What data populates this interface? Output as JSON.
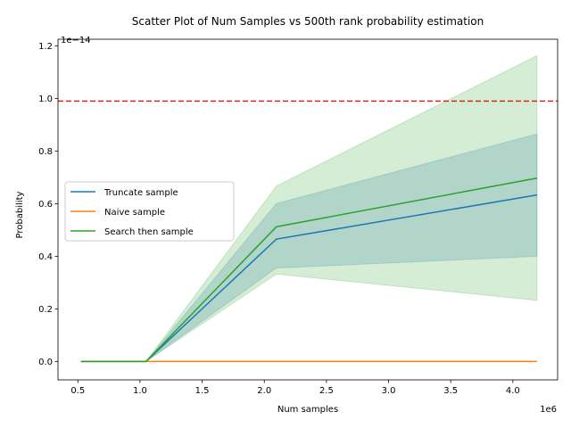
{
  "chart_data": {
    "type": "line",
    "title": "Scatter Plot of Num Samples vs 500th rank probability estimation",
    "xlabel": "Num samples",
    "ylabel": "Probability",
    "x_multiplier_label": "1e6",
    "y_multiplier_label": "1e−14",
    "x_scale": 1000000.0,
    "y_scale": 1e-14,
    "xlim": [
      0.34,
      4.36
    ],
    "ylim": [
      -0.07,
      1.225
    ],
    "x_ticks": [
      0.5,
      1.0,
      1.5,
      2.0,
      2.5,
      3.0,
      3.5,
      4.0
    ],
    "x_tick_labels": [
      "0.5",
      "1.0",
      "1.5",
      "2.0",
      "2.5",
      "3.0",
      "3.5",
      "4.0"
    ],
    "y_ticks": [
      0.0,
      0.2,
      0.4,
      0.6,
      0.8,
      1.0,
      1.2
    ],
    "y_tick_labels": [
      "0.0",
      "0.2",
      "0.4",
      "0.6",
      "0.8",
      "1.0",
      "1.2"
    ],
    "x": [
      0.524288,
      1.048576,
      2.097152,
      4.194304
    ],
    "grid": false,
    "legend_position": "center-left",
    "series": [
      {
        "name": "Truncate sample",
        "color": "#1f77b4",
        "values": [
          0.0,
          0.0,
          0.465,
          0.633
        ],
        "band_low": [
          0.0,
          0.0,
          0.355,
          0.4
        ],
        "band_high": [
          0.0,
          0.0,
          0.6,
          0.865
        ]
      },
      {
        "name": "Naive sample",
        "color": "#ff7f0e",
        "values": [
          0.0,
          0.0,
          0.0,
          0.0
        ],
        "band_low": [
          0.0,
          0.0,
          0.0,
          0.0
        ],
        "band_high": [
          0.0,
          0.0,
          0.0,
          0.0
        ]
      },
      {
        "name": "Search then sample",
        "color": "#2ca02c",
        "values": [
          0.0,
          0.0,
          0.512,
          0.697
        ],
        "band_low": [
          0.0,
          0.0,
          0.332,
          0.232
        ],
        "band_high": [
          0.0,
          0.0,
          0.667,
          1.163
        ]
      }
    ],
    "reference_line": {
      "y": 0.99,
      "color": "#d62728",
      "style": "dashed"
    }
  }
}
